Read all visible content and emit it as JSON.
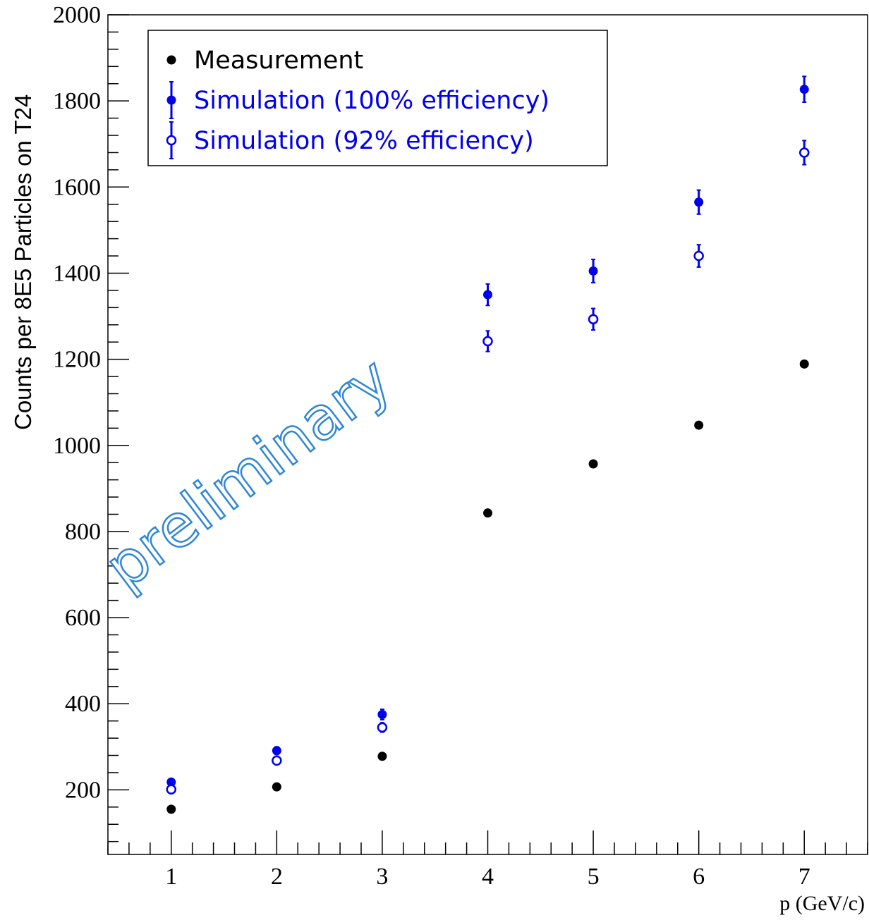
{
  "chart_data": {
    "type": "scatter",
    "xlabel": "p (GeV/c)",
    "ylabel": "Counts per 8E5 Particles on T24",
    "xlim": [
      0.4,
      7.6
    ],
    "ylim": [
      50,
      2000
    ],
    "xticks": [
      1,
      2,
      3,
      4,
      5,
      6,
      7
    ],
    "yticks": [
      200,
      400,
      600,
      800,
      1000,
      1200,
      1400,
      1600,
      1800,
      2000
    ],
    "grid": false,
    "legend_position": "top-left",
    "watermark": "preliminary",
    "series": [
      {
        "name": "Measurement",
        "marker": "filled-circle",
        "color": "#000000",
        "points": [
          {
            "x": 1,
            "y": 155,
            "err": 0
          },
          {
            "x": 2,
            "y": 207,
            "err": 0
          },
          {
            "x": 3,
            "y": 278,
            "err": 0
          },
          {
            "x": 4,
            "y": 843,
            "err": 0
          },
          {
            "x": 5,
            "y": 957,
            "err": 0
          },
          {
            "x": 6,
            "y": 1047,
            "err": 0
          },
          {
            "x": 7,
            "y": 1189,
            "err": 0
          }
        ]
      },
      {
        "name": "Simulation (100% efficiency)",
        "marker": "filled-circle",
        "color": "#0000ee",
        "points": [
          {
            "x": 1,
            "y": 218,
            "err": 7
          },
          {
            "x": 2,
            "y": 291,
            "err": 9
          },
          {
            "x": 3,
            "y": 375,
            "err": 12
          },
          {
            "x": 4,
            "y": 1350,
            "err": 25
          },
          {
            "x": 5,
            "y": 1405,
            "err": 27
          },
          {
            "x": 6,
            "y": 1565,
            "err": 28
          },
          {
            "x": 7,
            "y": 1827,
            "err": 30
          }
        ]
      },
      {
        "name": "Simulation (92% efficiency)",
        "marker": "open-circle",
        "color": "#0000ee",
        "points": [
          {
            "x": 1,
            "y": 201,
            "err": 6
          },
          {
            "x": 2,
            "y": 268,
            "err": 8
          },
          {
            "x": 3,
            "y": 345,
            "err": 11
          },
          {
            "x": 4,
            "y": 1242,
            "err": 24
          },
          {
            "x": 5,
            "y": 1293,
            "err": 25
          },
          {
            "x": 6,
            "y": 1440,
            "err": 26
          },
          {
            "x": 7,
            "y": 1680,
            "err": 28
          }
        ]
      }
    ]
  }
}
